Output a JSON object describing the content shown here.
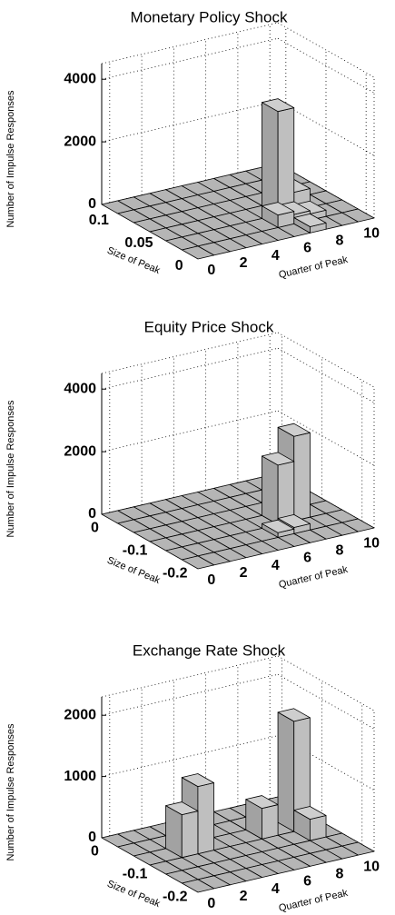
{
  "chart_data": [
    {
      "type": "bar3d",
      "title": "Monetary Policy Shock",
      "zlabel": "Number of Impulse Responses",
      "ylabel": "Size of Peak",
      "xlabel": "Quarter of Peak",
      "color": "#bfbfbf",
      "x": [
        0,
        1,
        2,
        3,
        4,
        5,
        6,
        7,
        8,
        9,
        10
      ],
      "xlim": [
        -0.5,
        10.5
      ],
      "xticks": [
        0,
        2,
        4,
        6,
        8,
        10
      ],
      "y": [
        0,
        0.02,
        0.04,
        0.06,
        0.08,
        0.1
      ],
      "ylim": [
        -0.01,
        0.11
      ],
      "yticks": [
        0,
        0.05,
        0.1
      ],
      "zlim": [
        0,
        4500
      ],
      "zticks": [
        0,
        2000,
        4000
      ],
      "values": [
        [
          0,
          0,
          0,
          0,
          0,
          0,
          0,
          200,
          0,
          0,
          0
        ],
        [
          0,
          0,
          0,
          0,
          0,
          0,
          400,
          300,
          200,
          0,
          0
        ],
        [
          0,
          0,
          0,
          0,
          0,
          0,
          0,
          3300,
          600,
          0,
          0
        ],
        [
          0,
          0,
          0,
          0,
          0,
          0,
          0,
          0,
          0,
          0,
          0
        ],
        [
          0,
          0,
          0,
          0,
          0,
          0,
          0,
          0,
          0,
          0,
          0
        ],
        [
          0,
          0,
          0,
          0,
          0,
          0,
          0,
          0,
          0,
          0,
          0
        ]
      ]
    },
    {
      "type": "bar3d",
      "title": "Equity Price Shock",
      "zlabel": "Number of Impulse Responses",
      "ylabel": "Size of Peak",
      "xlabel": "Quarter of Peak",
      "color": "#bfbfbf",
      "x": [
        0,
        1,
        2,
        3,
        4,
        5,
        6,
        7,
        8,
        9,
        10
      ],
      "xlim": [
        -0.5,
        10.5
      ],
      "xticks": [
        0,
        2,
        4,
        6,
        8,
        10
      ],
      "y": [
        -0.21,
        -0.17,
        -0.13,
        -0.09,
        -0.05,
        -0.01
      ],
      "ylim": [
        -0.23,
        0.01
      ],
      "yticks": [
        -0.2,
        -0.1,
        0
      ],
      "zlim": [
        0,
        4500
      ],
      "zticks": [
        0,
        2000,
        4000
      ],
      "values": [
        [
          0,
          0,
          0,
          0,
          0,
          0,
          0,
          0,
          0,
          0,
          0
        ],
        [
          0,
          0,
          0,
          0,
          0,
          0,
          150,
          200,
          0,
          0,
          0
        ],
        [
          0,
          0,
          0,
          0,
          0,
          0,
          0,
          1900,
          2700,
          0,
          0
        ],
        [
          0,
          0,
          0,
          0,
          0,
          0,
          0,
          0,
          0,
          0,
          0
        ],
        [
          0,
          0,
          0,
          0,
          0,
          0,
          0,
          0,
          0,
          0,
          0
        ],
        [
          0,
          0,
          0,
          0,
          0,
          0,
          0,
          0,
          0,
          0,
          0
        ]
      ]
    },
    {
      "type": "bar3d",
      "title": "Exchange Rate Shock",
      "zlabel": "Number of Impulse Responses",
      "ylabel": "Size of Peak",
      "xlabel": "Quarter of Peak",
      "color": "#bfbfbf",
      "x": [
        0,
        1,
        2,
        3,
        4,
        5,
        6,
        7,
        8,
        9,
        10
      ],
      "xlim": [
        -0.5,
        10.5
      ],
      "xticks": [
        0,
        2,
        4,
        6,
        8,
        10
      ],
      "y": [
        -0.21,
        -0.17,
        -0.13,
        -0.09,
        -0.05,
        -0.01
      ],
      "ylim": [
        -0.23,
        0.01
      ],
      "yticks": [
        -0.2,
        -0.1,
        0
      ],
      "zlim": [
        0,
        2300
      ],
      "zticks": [
        0,
        1000,
        2000
      ],
      "values": [
        [
          0,
          0,
          0,
          0,
          0,
          0,
          0,
          0,
          0,
          0,
          0
        ],
        [
          0,
          0,
          0,
          0,
          0,
          0,
          0,
          0,
          0,
          0,
          0
        ],
        [
          0,
          0,
          0,
          0,
          0,
          0,
          0,
          0,
          0,
          350,
          0
        ],
        [
          0,
          0,
          700,
          1100,
          0,
          0,
          0,
          500,
          0,
          1800,
          0
        ],
        [
          0,
          0,
          0,
          0,
          0,
          0,
          0,
          0,
          0,
          0,
          0
        ],
        [
          0,
          0,
          0,
          0,
          0,
          0,
          0,
          0,
          0,
          0,
          0
        ]
      ]
    }
  ]
}
